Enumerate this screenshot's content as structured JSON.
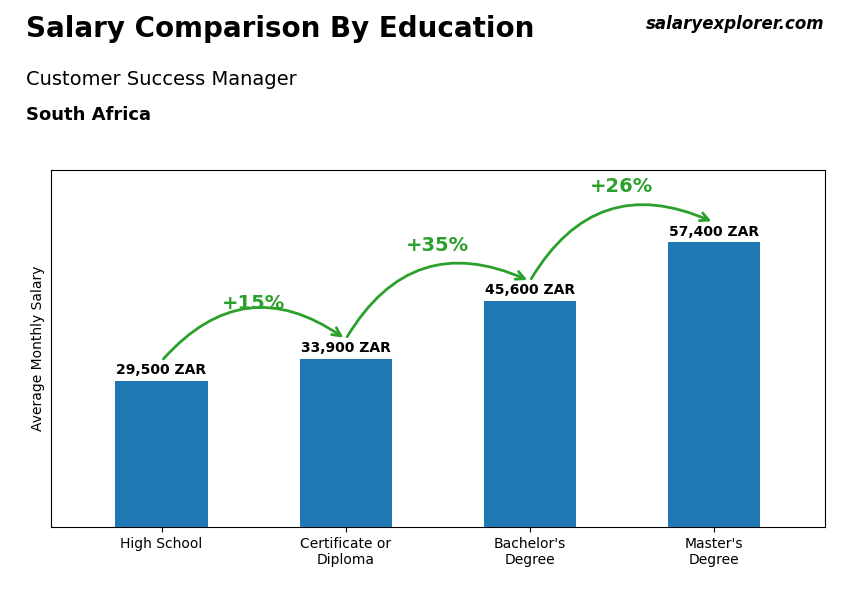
{
  "chart_data": {
    "type": "bar",
    "title": "Salary Comparison By Education",
    "subtitle": "Customer Success Manager",
    "country": "South Africa",
    "watermark": "salaryexplorer.com",
    "ylabel": "Average Monthly Salary",
    "categories": [
      "High School",
      "Certificate or\nDiploma",
      "Bachelor's\nDegree",
      "Master's\nDegree"
    ],
    "values": [
      29500,
      33900,
      45600,
      57400
    ],
    "value_labels": [
      "29,500 ZAR",
      "33,900 ZAR",
      "45,600 ZAR",
      "57,400 ZAR"
    ],
    "data_labels": true,
    "annotations": [
      "+15%",
      "+35%",
      "+26%"
    ],
    "ylim": [
      0,
      72000
    ],
    "tick_labels": "x",
    "grid": false
  }
}
